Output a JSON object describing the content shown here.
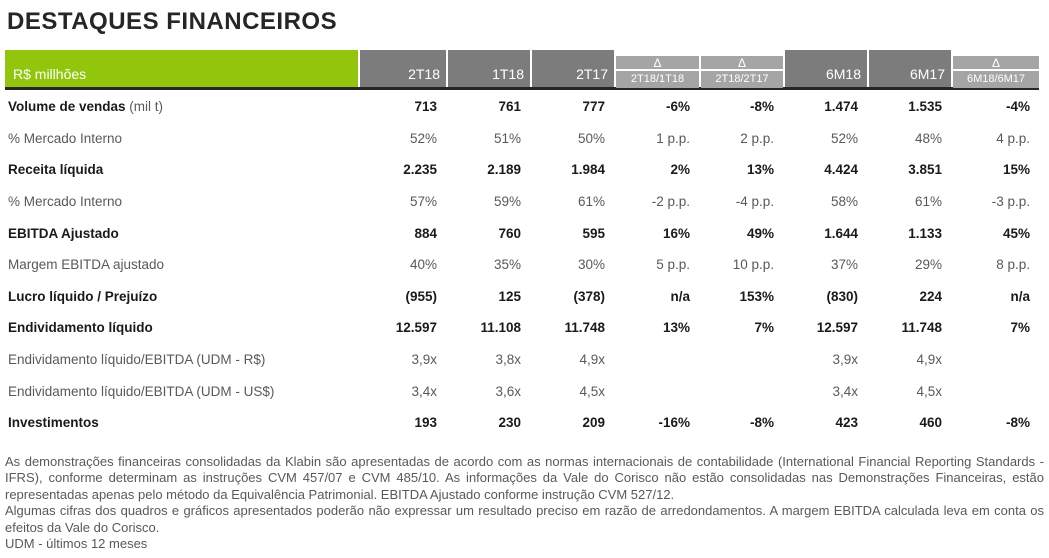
{
  "title": "DESTAQUES FINANCEIROS",
  "theme": {
    "header_green": "#92C60C",
    "header_gray": "#7C7C7C",
    "header_delta_gray": "#A5A5A5",
    "header_text": "#FFFFFF",
    "text_dark": "#1A1A1A",
    "text_gray": "#595959",
    "header_underline": "#262626"
  },
  "table": {
    "unit_label": "R$ millhões",
    "columns": [
      {
        "type": "period",
        "label": "2T18"
      },
      {
        "type": "period",
        "label": "1T18"
      },
      {
        "type": "period",
        "label": "2T17"
      },
      {
        "type": "delta",
        "delta": "Δ",
        "label": "2T18/1T18"
      },
      {
        "type": "delta",
        "delta": "Δ",
        "label": "2T18/2T17"
      },
      {
        "type": "period",
        "label": "6M18"
      },
      {
        "type": "period",
        "label": "6M17"
      },
      {
        "type": "delta",
        "delta": "Δ",
        "label": "6M18/6M17"
      }
    ],
    "rows": [
      {
        "label": "Volume de vendas",
        "suffix": " (mil t)",
        "bold": true,
        "values": [
          "713",
          "761",
          "777",
          "-6%",
          "-8%",
          "1.474",
          "1.535",
          "-4%"
        ]
      },
      {
        "label": "% Mercado Interno",
        "bold": false,
        "values": [
          "52%",
          "51%",
          "50%",
          "1 p.p.",
          "2 p.p.",
          "52%",
          "48%",
          "4 p.p."
        ]
      },
      {
        "label": "Receita líquida",
        "bold": true,
        "values": [
          "2.235",
          "2.189",
          "1.984",
          "2%",
          "13%",
          "4.424",
          "3.851",
          "15%"
        ]
      },
      {
        "label": "% Mercado Interno",
        "bold": false,
        "values": [
          "57%",
          "59%",
          "61%",
          "-2 p.p.",
          "-4 p.p.",
          "58%",
          "61%",
          "-3 p.p."
        ]
      },
      {
        "label": "EBITDA Ajustado",
        "bold": true,
        "values": [
          "884",
          "760",
          "595",
          "16%",
          "49%",
          "1.644",
          "1.133",
          "45%"
        ]
      },
      {
        "label": "Margem EBITDA ajustado",
        "bold": false,
        "values": [
          "40%",
          "35%",
          "30%",
          "5 p.p.",
          "10 p.p.",
          "37%",
          "29%",
          "8 p.p."
        ]
      },
      {
        "label": "Lucro líquido / Prejuízo",
        "bold": true,
        "values": [
          "(955)",
          "125",
          "(378)",
          "n/a",
          "153%",
          "(830)",
          "224",
          "n/a"
        ]
      },
      {
        "label": "Endividamento líquido",
        "bold": true,
        "values": [
          "12.597",
          "11.108",
          "11.748",
          "13%",
          "7%",
          "12.597",
          "11.748",
          "7%"
        ]
      },
      {
        "label": "Endividamento líquido/EBITDA (UDM - R$)",
        "bold": false,
        "values": [
          "3,9x",
          "3,8x",
          "4,9x",
          "",
          "",
          "3,9x",
          "4,9x",
          ""
        ]
      },
      {
        "label": "Endividamento líquido/EBITDA (UDM - US$)",
        "bold": false,
        "values": [
          "3,4x",
          "3,6x",
          "4,5x",
          "",
          "",
          "3,4x",
          "4,5x",
          ""
        ]
      },
      {
        "label": "Investimentos",
        "bold": true,
        "values": [
          "193",
          "230",
          "209",
          "-16%",
          "-8%",
          "423",
          "460",
          "-8%"
        ]
      }
    ]
  },
  "footnotes": [
    {
      "justify": true,
      "text": "As demonstrações financeiras consolidadas da Klabin são apresentadas de acordo com as normas internacionais de contabilidade (International Financial Reporting Standards -"
    },
    {
      "justify": true,
      "text": "IFRS), conforme determinam as instruções CVM 457/07 e CVM 485/10. As informações da Vale do Corisco não estão consolidadas nas Demonstrações Financeiras, estão"
    },
    {
      "justify": false,
      "text": "representadas apenas pelo método da Equivalência Patrimonial. EBITDA Ajustado conforme instrução CVM 527/12."
    },
    {
      "justify": true,
      "text": "Algumas cifras dos quadros e gráficos apresentados poderão não expressar um resultado preciso em razão de arredondamentos. A margem EBITDA calculada leva em conta os"
    },
    {
      "justify": false,
      "text": "efeitos da Vale do Corisco."
    },
    {
      "justify": false,
      "text": "UDM - últimos 12 meses"
    }
  ]
}
